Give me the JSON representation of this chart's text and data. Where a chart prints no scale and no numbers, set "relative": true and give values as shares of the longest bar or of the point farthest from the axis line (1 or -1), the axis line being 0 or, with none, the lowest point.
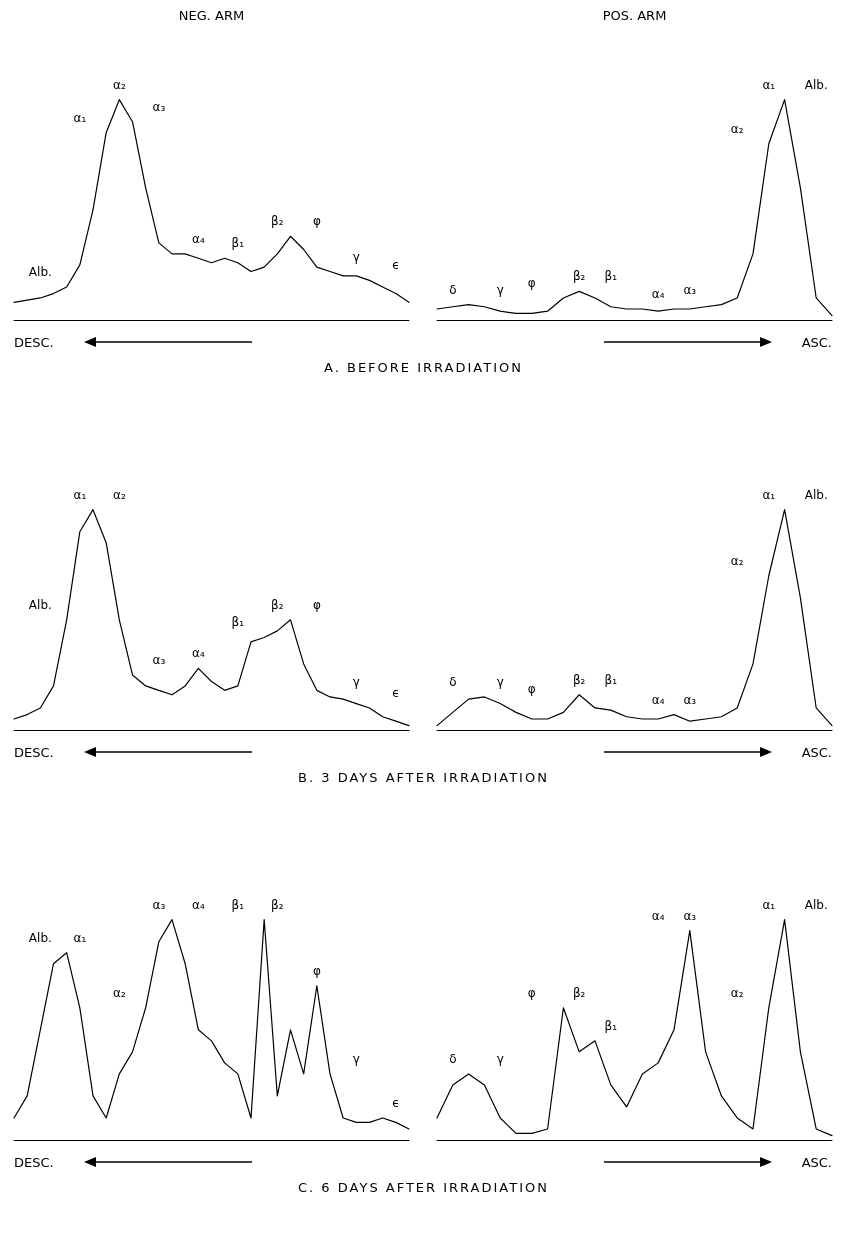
{
  "chart_data": [
    {
      "type": "line",
      "relative": true,
      "title": "NEG. ARM",
      "subtitle": "A. BEFORE IRRADIATION",
      "xlabel": "DESC.",
      "categories": [
        null,
        null,
        null,
        null,
        null,
        null,
        null,
        null,
        null,
        null,
        null,
        null,
        null,
        null,
        null,
        null,
        null,
        null,
        null,
        null,
        null,
        null,
        null,
        null,
        null,
        null,
        null,
        null,
        null,
        null,
        null
      ],
      "series": [
        {
          "color": "#000000",
          "values": [
            0.08,
            0.09,
            0.1,
            0.12,
            0.15,
            0.25,
            0.5,
            0.85,
            1,
            0.9,
            0.6,
            0.35,
            0.3,
            0.3,
            0.28,
            0.26,
            0.28,
            0.26,
            0.22,
            0.24,
            0.3,
            0.38,
            0.32,
            0.24,
            0.22,
            0.2,
            0.2,
            0.18,
            0.15,
            0.12,
            0.08
          ]
        }
      ],
      "annotations": [
        "Alb.",
        "α₁",
        "α₂",
        "α₃",
        "α₄",
        "β₁",
        "β₂",
        "φ",
        "γ",
        "ϵ"
      ]
    },
    {
      "type": "line",
      "relative": true,
      "title": "POS. ARM",
      "xlabel": "ASC.",
      "categories": [
        null,
        null,
        null,
        null,
        null,
        null,
        null,
        null,
        null,
        null,
        null,
        null,
        null,
        null,
        null,
        null,
        null,
        null,
        null,
        null,
        null,
        null,
        null,
        null,
        null,
        null
      ],
      "series": [
        {
          "color": "#000000",
          "values": [
            0.05,
            0.06,
            0.07,
            0.06,
            0.04,
            0.03,
            0.03,
            0.04,
            0.1,
            0.13,
            0.1,
            0.06,
            0.05,
            0.05,
            0.04,
            0.05,
            0.05,
            0.06,
            0.07,
            0.1,
            0.3,
            0.8,
            1,
            0.6,
            0.1,
            0.02
          ]
        }
      ],
      "annotations": [
        "δ",
        "γ",
        "φ",
        "β₂",
        "β₁",
        "α₄",
        "α₃",
        "α₂",
        "α₁",
        "Alb."
      ]
    },
    {
      "type": "line",
      "relative": true,
      "subtitle": "B. 3 DAYS AFTER IRRADIATION",
      "xlabel": "DESC.",
      "categories": [
        null,
        null,
        null,
        null,
        null,
        null,
        null,
        null,
        null,
        null,
        null,
        null,
        null,
        null,
        null,
        null,
        null,
        null,
        null,
        null,
        null,
        null,
        null,
        null,
        null,
        null,
        null,
        null,
        null,
        null,
        null
      ],
      "series": [
        {
          "color": "#000000",
          "values": [
            0.05,
            0.07,
            0.1,
            0.2,
            0.5,
            0.9,
            1,
            0.85,
            0.5,
            0.25,
            0.2,
            0.18,
            0.16,
            0.2,
            0.28,
            0.22,
            0.18,
            0.2,
            0.4,
            0.42,
            0.45,
            0.5,
            0.3,
            0.18,
            0.15,
            0.14,
            0.12,
            0.1,
            0.06,
            0.04,
            0.02
          ]
        }
      ],
      "annotations": [
        "Alb.",
        "α₁",
        "α₂",
        "α₃",
        "α₄",
        "β₁",
        "β₂",
        "φ",
        "γ",
        "ϵ"
      ]
    },
    {
      "type": "line",
      "relative": true,
      "xlabel": "ASC.",
      "categories": [
        null,
        null,
        null,
        null,
        null,
        null,
        null,
        null,
        null,
        null,
        null,
        null,
        null,
        null,
        null,
        null,
        null,
        null,
        null,
        null,
        null,
        null,
        null,
        null,
        null,
        null
      ],
      "series": [
        {
          "color": "#000000",
          "values": [
            0.02,
            0.08,
            0.14,
            0.15,
            0.12,
            0.08,
            0.05,
            0.05,
            0.08,
            0.16,
            0.1,
            0.09,
            0.06,
            0.05,
            0.05,
            0.07,
            0.04,
            0.05,
            0.06,
            0.1,
            0.3,
            0.7,
            1,
            0.6,
            0.1,
            0.02
          ]
        }
      ],
      "annotations": [
        "δ",
        "γ",
        "φ",
        "β₂",
        "β₁",
        "α₄",
        "α₃",
        "α₂",
        "α₁",
        "Alb."
      ]
    },
    {
      "type": "line",
      "relative": true,
      "subtitle": "C. 6 DAYS AFTER IRRADIATION",
      "xlabel": "DESC.",
      "categories": [
        null,
        null,
        null,
        null,
        null,
        null,
        null,
        null,
        null,
        null,
        null,
        null,
        null,
        null,
        null,
        null,
        null,
        null,
        null,
        null,
        null,
        null,
        null,
        null,
        null,
        null,
        null,
        null,
        null,
        null,
        null
      ],
      "series": [
        {
          "color": "#000000",
          "values": [
            0.1,
            0.2,
            0.5,
            0.8,
            0.85,
            0.6,
            0.2,
            0.1,
            0.3,
            0.4,
            0.6,
            0.9,
            1,
            0.8,
            0.5,
            0.45,
            0.35,
            0.3,
            0.1,
            1,
            0.2,
            0.5,
            0.3,
            0.7,
            0.3,
            0.1,
            0.08,
            0.08,
            0.1,
            0.08,
            0.05
          ]
        }
      ],
      "annotations": [
        "Alb.",
        "α₁",
        "α₂",
        "α₃",
        "α₄",
        "β₁",
        "β₂",
        "φ",
        "γ",
        "ϵ"
      ]
    },
    {
      "type": "line",
      "relative": true,
      "xlabel": "ASC.",
      "categories": [
        null,
        null,
        null,
        null,
        null,
        null,
        null,
        null,
        null,
        null,
        null,
        null,
        null,
        null,
        null,
        null,
        null,
        null,
        null,
        null,
        null,
        null,
        null,
        null,
        null,
        null
      ],
      "series": [
        {
          "color": "#000000",
          "values": [
            0.1,
            0.25,
            0.3,
            0.25,
            0.1,
            0.03,
            0.03,
            0.05,
            0.6,
            0.4,
            0.45,
            0.25,
            0.15,
            0.3,
            0.35,
            0.5,
            0.95,
            0.4,
            0.2,
            0.1,
            0.05,
            0.6,
            1,
            0.4,
            0.05,
            0.02
          ]
        }
      ],
      "annotations": [
        "δ",
        "γ",
        "φ",
        "β₂",
        "β₁",
        "α₄",
        "α₃",
        "α₂",
        "α₁",
        "Alb."
      ]
    }
  ]
}
